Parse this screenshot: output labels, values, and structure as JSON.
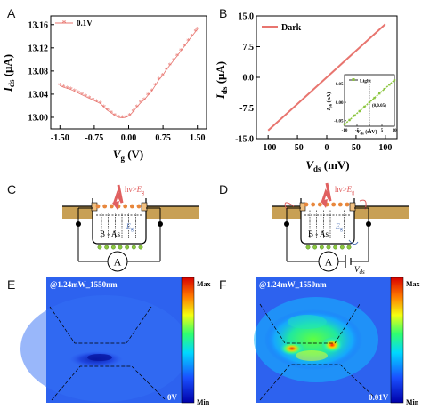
{
  "panels": {
    "a": "A",
    "b": "B",
    "c": "C",
    "d": "D",
    "e": "E",
    "f": "F"
  },
  "colors": {
    "series": "#e8756f",
    "inset_series": "#8cc63f",
    "substrate": "#c8a055",
    "photon": "#e06060",
    "bandgap": "#4a6fb5"
  },
  "chart_data": [
    {
      "panel": "A",
      "type": "line",
      "xlabel": "Vg (V)",
      "ylabel": "Ids (μA)",
      "xticks": [
        -1.5,
        -0.75,
        0.0,
        0.75,
        1.5
      ],
      "xtick_labels": [
        "-1.50",
        "-0.75",
        "0.00",
        "0.75",
        "1.50"
      ],
      "yticks": [
        13.0,
        13.04,
        13.08,
        13.12,
        13.16
      ],
      "ytick_labels": [
        "13.00",
        "13.04",
        "13.08",
        "13.12",
        "13.16"
      ],
      "xlim": [
        -1.7,
        1.7
      ],
      "ylim": [
        12.98,
        13.175
      ],
      "marker": "asterisk",
      "series": [
        {
          "name": "0.1V",
          "x": [
            -1.5,
            -1.42,
            -1.34,
            -1.26,
            -1.18,
            -1.1,
            -1.02,
            -0.94,
            -0.86,
            -0.78,
            -0.7,
            -0.62,
            -0.54,
            -0.46,
            -0.38,
            -0.3,
            -0.22,
            -0.14,
            -0.06,
            0.02,
            0.1,
            0.18,
            0.26,
            0.34,
            0.42,
            0.5,
            0.58,
            0.66,
            0.74,
            0.82,
            0.9,
            0.98,
            1.06,
            1.14,
            1.22,
            1.3,
            1.38,
            1.46,
            1.5
          ],
          "y": [
            13.055,
            13.052,
            13.05,
            13.048,
            13.045,
            13.042,
            13.039,
            13.036,
            13.033,
            13.03,
            13.027,
            13.024,
            13.018,
            13.012,
            13.008,
            13.003,
            13.0,
            12.999,
            13.0,
            13.003,
            13.01,
            13.018,
            13.025,
            13.03,
            13.038,
            13.045,
            13.055,
            13.065,
            13.072,
            13.082,
            13.09,
            13.098,
            13.106,
            13.115,
            13.123,
            13.132,
            13.14,
            13.148,
            13.152
          ]
        }
      ]
    },
    {
      "panel": "B",
      "type": "line",
      "xlabel": "Vds (mV)",
      "ylabel": "Ids (μA)",
      "xticks": [
        -100,
        -50,
        0,
        50,
        100
      ],
      "yticks": [
        -15.0,
        -7.5,
        0.0,
        7.5,
        15.0
      ],
      "ytick_labels": [
        "-15.0",
        "-7.5",
        "0.0",
        "7.5",
        "15.0"
      ],
      "xlim": [
        -120,
        120
      ],
      "ylim": [
        -15,
        15
      ],
      "series": [
        {
          "name": "Dark",
          "x": [
            -100,
            100
          ],
          "y": [
            -13,
            13
          ]
        }
      ]
    },
    {
      "panel": "B-inset",
      "type": "line",
      "xlabel": "Vds (mV)",
      "ylabel": "Iph (nA)",
      "xticks": [
        -10,
        -5,
        0,
        5,
        10
      ],
      "yticks": [
        -0.05,
        0.0,
        0.05
      ],
      "ytick_labels": [
        "-0.05",
        "0.00",
        "0.05"
      ],
      "xlim": [
        -10,
        10
      ],
      "ylim": [
        -0.065,
        0.075
      ],
      "annotation": "(0,0.05)",
      "series": [
        {
          "name": "Light",
          "x": [
            -10,
            -8,
            -6,
            -4,
            -2,
            0,
            2,
            4,
            6,
            8,
            10
          ],
          "y": [
            -0.06,
            -0.048,
            -0.036,
            -0.024,
            -0.012,
            0.0,
            0.012,
            0.024,
            0.036,
            0.048,
            0.06
          ]
        }
      ]
    }
  ],
  "diagrams": {
    "c": {
      "material": "B - As",
      "meter": "A",
      "photon_label": "hν>Eg"
    },
    "d": {
      "material": "B - As",
      "meter": "A",
      "photon_label": "hν>Eg",
      "bias_label": "Vds"
    }
  },
  "maps": {
    "e": {
      "caption": "@1.24mW_1550nm",
      "bias": "0V",
      "scale_max": "Max",
      "scale_min": "Min"
    },
    "f": {
      "caption": "@1.24mW_1550nm",
      "bias": "0.01V",
      "scale_max": "Max",
      "scale_min": "Min"
    }
  }
}
